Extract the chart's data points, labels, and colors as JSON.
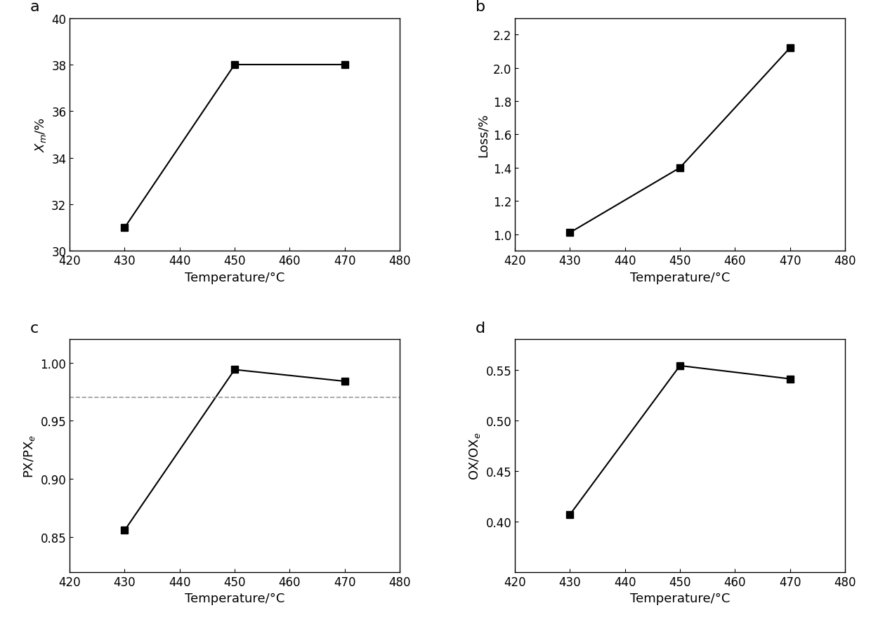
{
  "temp": [
    430,
    450,
    470
  ],
  "panel_a": {
    "label": "a",
    "xlabel": "Temperature/°C",
    "ylabel_latex": "$X_m$/%",
    "y": [
      31.0,
      38.0,
      38.0
    ],
    "ylim": [
      30,
      40
    ],
    "yticks": [
      30,
      32,
      34,
      36,
      38,
      40
    ],
    "xlim": [
      420,
      480
    ],
    "xticks": [
      420,
      430,
      440,
      450,
      460,
      470,
      480
    ],
    "hline": null
  },
  "panel_b": {
    "label": "b",
    "xlabel": "Temperature/°C",
    "ylabel_latex": "Loss/%",
    "y": [
      1.01,
      1.4,
      2.12
    ],
    "ylim": [
      0.9,
      2.3
    ],
    "yticks": [
      1.0,
      1.2,
      1.4,
      1.6,
      1.8,
      2.0,
      2.2
    ],
    "xlim": [
      420,
      480
    ],
    "xticks": [
      420,
      430,
      440,
      450,
      460,
      470,
      480
    ],
    "hline": null
  },
  "panel_c": {
    "label": "c",
    "xlabel": "Temperature/°C",
    "ylabel_latex": "PX/PX$_e$",
    "y": [
      0.856,
      0.994,
      0.984
    ],
    "ylim": [
      0.82,
      1.02
    ],
    "yticks": [
      0.85,
      0.9,
      0.95,
      1.0
    ],
    "xlim": [
      420,
      480
    ],
    "xticks": [
      420,
      430,
      440,
      450,
      460,
      470,
      480
    ],
    "hline": 0.97
  },
  "panel_d": {
    "label": "d",
    "xlabel": "Temperature/°C",
    "ylabel_latex": "OX/OX$_e$",
    "y": [
      0.407,
      0.554,
      0.541
    ],
    "ylim": [
      0.35,
      0.58
    ],
    "yticks": [
      0.4,
      0.45,
      0.5,
      0.55
    ],
    "xlim": [
      420,
      480
    ],
    "xticks": [
      420,
      430,
      440,
      450,
      460,
      470,
      480
    ],
    "hline": null
  },
  "marker": "s",
  "markersize": 7,
  "linewidth": 1.5,
  "color": "#000000",
  "tick_fontsize": 12,
  "axis_label_fontsize": 13,
  "panel_label_fontsize": 16,
  "hspace": 0.38,
  "wspace": 0.35
}
